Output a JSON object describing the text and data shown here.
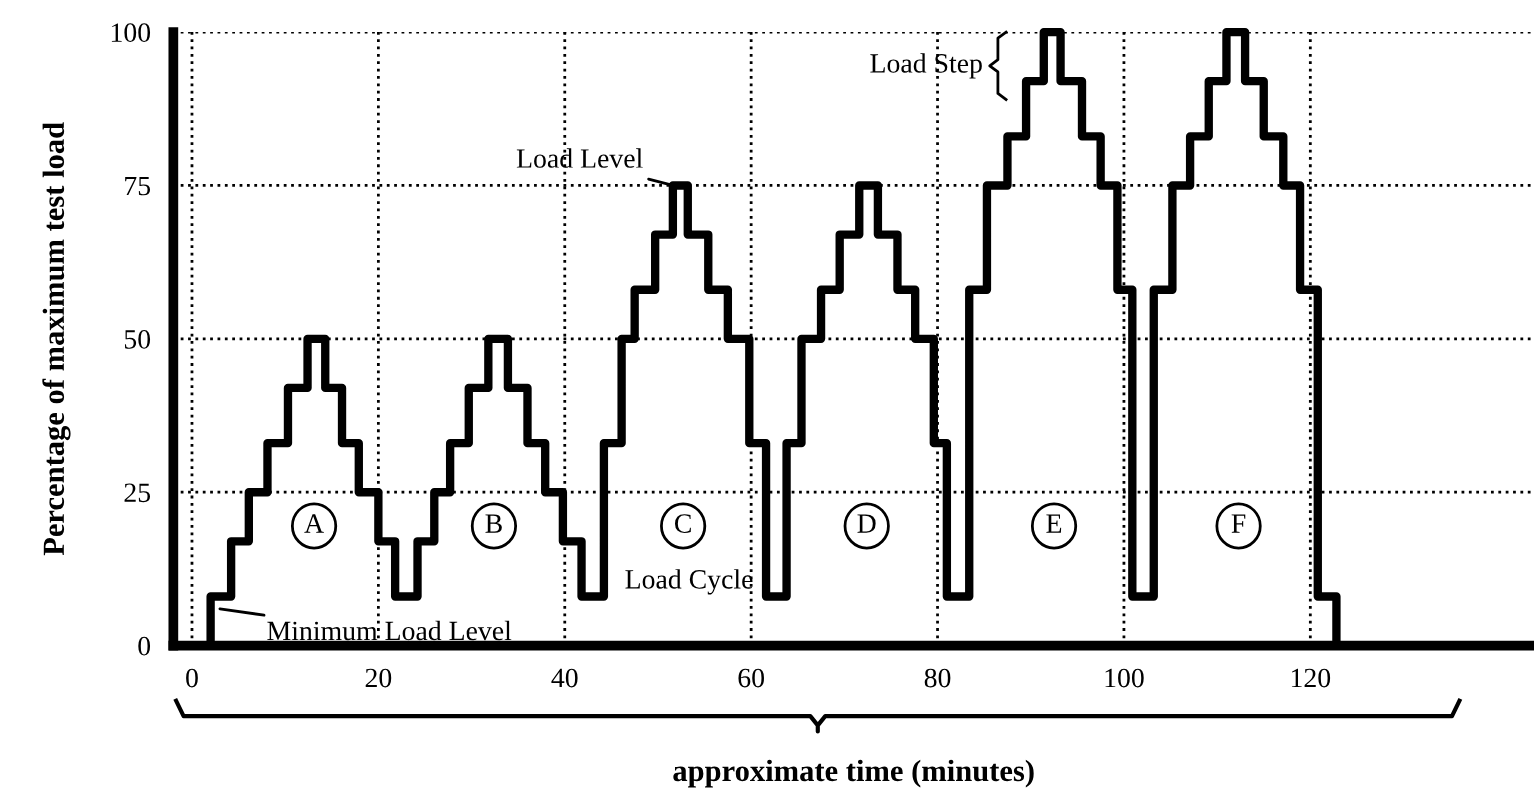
{
  "chart_data": {
    "type": "step",
    "xlabel": "approximate time (minutes)",
    "ylabel": "Percentage of maximum test load",
    "x": [
      0,
      2.0,
      4.2,
      6.1,
      8.1,
      10.3,
      12.4,
      14.3,
      16.1,
      17.9,
      20.0,
      21.8,
      24.2,
      26.0,
      27.7,
      29.7,
      31.8,
      33.9,
      36.0,
      37.9,
      39.8,
      41.8,
      44.2,
      46.1,
      47.5,
      49.7,
      51.6,
      53.2,
      55.4,
      57.5,
      59.8,
      61.6,
      63.8,
      65.4,
      67.5,
      69.5,
      71.6,
      73.6,
      75.7,
      77.6,
      79.6,
      81.0,
      83.4,
      85.3,
      87.5,
      89.5,
      91.4,
      93.2,
      95.5,
      97.5,
      99.3,
      100.9,
      103.2,
      105.2,
      107.1,
      109.1,
      111.0,
      113.0,
      115.0,
      117.1,
      118.9,
      120.8,
      122.8,
      144
    ],
    "values": [
      0,
      8,
      17,
      25,
      33,
      42,
      50,
      42,
      33,
      25,
      17,
      8,
      17,
      25,
      33,
      42,
      50,
      42,
      33,
      25,
      17,
      8,
      33,
      50,
      58,
      67,
      75,
      67,
      58,
      50,
      33,
      8,
      33,
      50,
      58,
      67,
      75,
      67,
      58,
      50,
      33,
      8,
      58,
      75,
      83,
      92,
      100,
      92,
      83,
      75,
      58,
      8,
      58,
      75,
      83,
      92,
      100,
      92,
      83,
      75,
      58,
      8,
      0,
      0
    ],
    "color": "#000000",
    "xlim": [
      -2,
      144
    ],
    "xticks": [
      0,
      20,
      40,
      60,
      80,
      100,
      120
    ],
    "ylim": [
      0,
      100
    ],
    "yticks": [
      0,
      25,
      50,
      75,
      100
    ],
    "grid": true,
    "line_style": "solid",
    "annotations": [
      {
        "text": "A",
        "x": 13.1,
        "y": 19.5
      },
      {
        "text": "B",
        "x": 32.4,
        "y": 19.5
      },
      {
        "text": "C",
        "x": 52.7,
        "y": 19.5
      },
      {
        "text": "D",
        "x": 72.4,
        "y": 19.5
      },
      {
        "text": "E",
        "x": 92.5,
        "y": 19.5
      },
      {
        "text": "F",
        "x": 112.3,
        "y": 19.5
      },
      {
        "text": "Minimum Load Level",
        "x": 3.0,
        "y": 6
      },
      "Load Cycle",
      {
        "text": "Load Level",
        "x": 51.6,
        "y": 75
      },
      "Load Step"
    ]
  }
}
